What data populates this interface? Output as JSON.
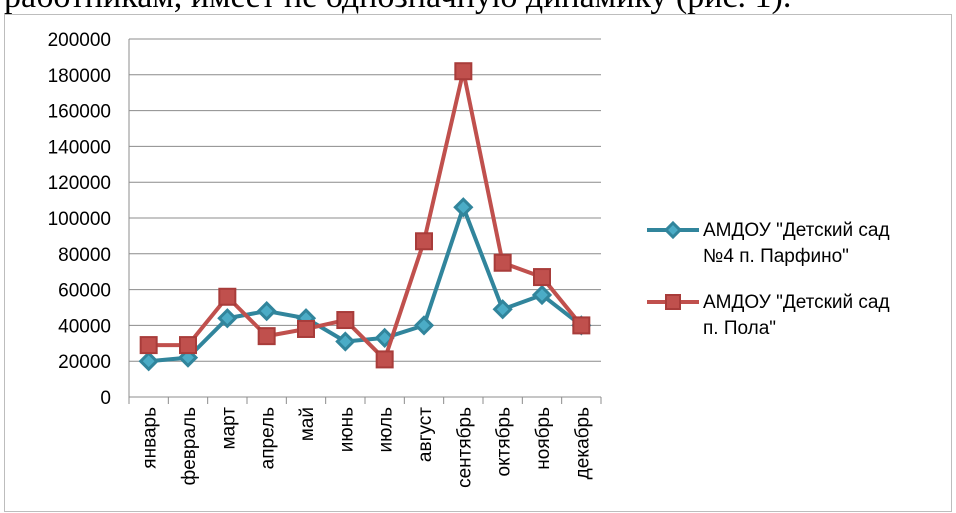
{
  "page": {
    "top_text": "работникам, имеет не однозначную динамику (рис. 1)."
  },
  "chart_data": {
    "type": "line",
    "title": "",
    "xlabel": "",
    "ylabel": "",
    "ylim": [
      0,
      200000
    ],
    "yticks": [
      0,
      20000,
      40000,
      60000,
      80000,
      100000,
      120000,
      140000,
      160000,
      180000,
      200000
    ],
    "ytick_labels": [
      "0",
      "20000",
      "40000",
      "60000",
      "80000",
      "100000",
      "120000",
      "140000",
      "160000",
      "180000",
      "200000"
    ],
    "categories": [
      "январь",
      "февраль",
      "март",
      "апрель",
      "май",
      "июнь",
      "июль",
      "август",
      "сентябрь",
      "октябрь",
      "ноябрь",
      "декабрь"
    ],
    "grid": "horizontal",
    "legend_position": "right",
    "series": [
      {
        "name": "АМДОУ \"Детский сад №4 п. Парфино\"",
        "name_lines": [
          "АМДОУ \"Детский сад",
          "№4 п. Парфино\""
        ],
        "color": "#31859c",
        "marker": "diamond",
        "values": [
          20000,
          22000,
          44000,
          48000,
          44000,
          31000,
          33000,
          40000,
          106000,
          49000,
          57000,
          40000
        ]
      },
      {
        "name": "АМДОУ \"Детский сад п. Пола\"",
        "name_lines": [
          "АМДОУ \"Детский сад",
          "п. Пола\""
        ],
        "color": "#c0504d",
        "marker": "square",
        "values": [
          29000,
          29000,
          56000,
          34000,
          38000,
          43000,
          21000,
          87000,
          182000,
          75000,
          67000,
          40000
        ]
      }
    ]
  }
}
